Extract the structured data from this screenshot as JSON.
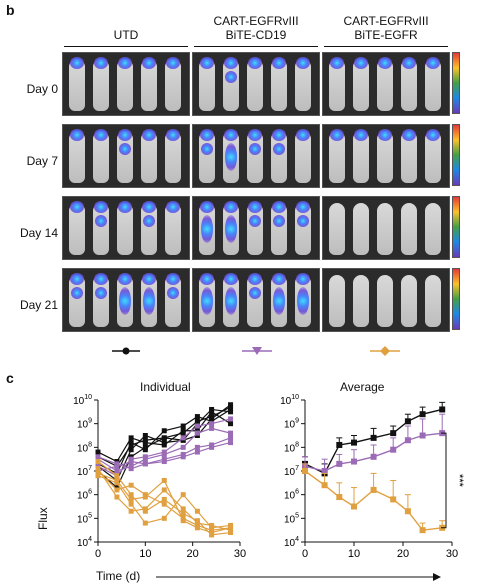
{
  "panel_b": {
    "letter": "b",
    "groups": [
      {
        "label_line1": "UTD",
        "label_line2": ""
      },
      {
        "label_line1": "CART-EGFRvIII",
        "label_line2": "BiTE-CD19"
      },
      {
        "label_line1": "CART-EGFRvIII",
        "label_line2": "BiTE-EGFR"
      }
    ],
    "rows": [
      "Day 0",
      "Day 7",
      "Day 14",
      "Day 21"
    ],
    "colors": {
      "utd": "#111111",
      "cd19": "#9b6bb5",
      "egfr": "#e0a040"
    }
  },
  "panel_c": {
    "letter": "c",
    "ylabel": "Flux",
    "xlabel": "Time (d)",
    "chart_data": [
      {
        "type": "line",
        "title": "Individual",
        "ylim": [
          4,
          10
        ],
        "log_y": true,
        "xlim": [
          0,
          30
        ],
        "x_ticks": [
          0,
          10,
          20,
          30
        ],
        "series": [
          {
            "color": "#111111",
            "lines": [
              [
                [
                  0,
                  7.6
                ],
                [
                  4,
                  7.2
                ],
                [
                  7,
                  8.1
                ],
                [
                  10,
                  8.3
                ],
                [
                  14,
                  8.4
                ],
                [
                  18,
                  8.6
                ],
                [
                  21,
                  9.1
                ],
                [
                  24,
                  9.3
                ],
                [
                  28,
                  9.7
                ]
              ],
              [
                [
                  0,
                  7.0
                ],
                [
                  4,
                  6.3
                ],
                [
                  7,
                  7.6
                ],
                [
                  10,
                  8.0
                ],
                [
                  14,
                  8.4
                ],
                [
                  18,
                  8.3
                ],
                [
                  21,
                  9.0
                ],
                [
                  24,
                  9.6
                ],
                [
                  28,
                  9.5
                ]
              ],
              [
                [
                  0,
                  7.3
                ],
                [
                  4,
                  6.9
                ],
                [
                  7,
                  8.2
                ],
                [
                  10,
                  7.9
                ],
                [
                  14,
                  8.7
                ],
                [
                  18,
                  8.9
                ],
                [
                  21,
                  9.3
                ],
                [
                  24,
                  9.1
                ],
                [
                  28,
                  9.6
                ]
              ],
              [
                [
                  0,
                  7.8
                ],
                [
                  4,
                  7.4
                ],
                [
                  7,
                  8.4
                ],
                [
                  10,
                  8.2
                ],
                [
                  14,
                  8.1
                ],
                [
                  18,
                  8.7
                ],
                [
                  21,
                  8.7
                ],
                [
                  24,
                  9.5
                ],
                [
                  28,
                  9.0
                ]
              ],
              [
                [
                  0,
                  7.2
                ],
                [
                  4,
                  6.6
                ],
                [
                  7,
                  7.9
                ],
                [
                  10,
                  8.5
                ],
                [
                  14,
                  8.2
                ],
                [
                  18,
                  8.3
                ],
                [
                  21,
                  8.5
                ],
                [
                  24,
                  9.2
                ],
                [
                  28,
                  9.8
                ]
              ]
            ]
          },
          {
            "color": "#9b6bb5",
            "lines": [
              [
                [
                  0,
                  7.2
                ],
                [
                  4,
                  6.8
                ],
                [
                  7,
                  7.5
                ],
                [
                  10,
                  7.6
                ],
                [
                  14,
                  7.8
                ],
                [
                  18,
                  8.4
                ],
                [
                  21,
                  8.9
                ],
                [
                  24,
                  9.0
                ],
                [
                  28,
                  9.2
                ]
              ],
              [
                [
                  0,
                  7.5
                ],
                [
                  4,
                  7.0
                ],
                [
                  7,
                  7.2
                ],
                [
                  10,
                  7.5
                ],
                [
                  14,
                  7.7
                ],
                [
                  18,
                  8.0
                ],
                [
                  21,
                  8.6
                ],
                [
                  24,
                  8.8
                ],
                [
                  28,
                  8.6
                ]
              ],
              [
                [
                  0,
                  7.0
                ],
                [
                  4,
                  7.2
                ],
                [
                  7,
                  7.4
                ],
                [
                  10,
                  7.3
                ],
                [
                  14,
                  7.5
                ],
                [
                  18,
                  7.7
                ],
                [
                  21,
                  8.0
                ],
                [
                  24,
                  8.1
                ],
                [
                  28,
                  8.4
                ]
              ],
              [
                [
                  0,
                  7.6
                ],
                [
                  4,
                  7.3
                ],
                [
                  7,
                  7.1
                ],
                [
                  10,
                  7.3
                ],
                [
                  14,
                  7.4
                ],
                [
                  18,
                  7.6
                ],
                [
                  21,
                  7.8
                ],
                [
                  24,
                  8.0
                ],
                [
                  28,
                  8.2
                ]
              ]
            ]
          },
          {
            "color": "#e0a040",
            "lines": [
              [
                [
                  0,
                  7.0
                ],
                [
                  4,
                  6.2
                ],
                [
                  7,
                  6.4
                ],
                [
                  10,
                  6.0
                ],
                [
                  14,
                  5.6
                ],
                [
                  18,
                  5.0
                ],
                [
                  21,
                  4.7
                ],
                [
                  24,
                  4.5
                ],
                [
                  28,
                  4.6
                ]
              ],
              [
                [
                  0,
                  7.4
                ],
                [
                  4,
                  6.8
                ],
                [
                  7,
                  6.0
                ],
                [
                  10,
                  5.3
                ],
                [
                  14,
                  5.8
                ],
                [
                  18,
                  5.2
                ],
                [
                  21,
                  4.9
                ],
                [
                  24,
                  4.3
                ],
                [
                  28,
                  4.4
                ]
              ],
              [
                [
                  0,
                  6.8
                ],
                [
                  4,
                  6.5
                ],
                [
                  7,
                  5.6
                ],
                [
                  10,
                  4.8
                ],
                [
                  14,
                  5.0
                ],
                [
                  18,
                  6.0
                ],
                [
                  21,
                  5.3
                ],
                [
                  24,
                  4.6
                ],
                [
                  28,
                  4.7
                ]
              ],
              [
                [
                  0,
                  7.1
                ],
                [
                  4,
                  5.9
                ],
                [
                  7,
                  5.3
                ],
                [
                  10,
                  5.4
                ],
                [
                  14,
                  6.2
                ],
                [
                  18,
                  5.4
                ],
                [
                  21,
                  4.8
                ],
                [
                  24,
                  4.7
                ],
                [
                  28,
                  4.5
                ]
              ],
              [
                [
                  0,
                  6.9
                ],
                [
                  4,
                  6.6
                ],
                [
                  7,
                  5.8
                ],
                [
                  10,
                  5.9
                ],
                [
                  14,
                  6.6
                ],
                [
                  18,
                  4.9
                ],
                [
                  21,
                  4.6
                ],
                [
                  24,
                  4.4
                ],
                [
                  28,
                  4.6
                ]
              ]
            ]
          }
        ]
      },
      {
        "type": "line",
        "title": "Average",
        "ylim": [
          4,
          10
        ],
        "log_y": true,
        "xlim": [
          0,
          30
        ],
        "x_ticks": [
          0,
          10,
          20,
          30
        ],
        "significance": "***",
        "series": [
          {
            "color": "#111111",
            "points": [
              [
                0,
                7.3
              ],
              [
                4,
                6.9
              ],
              [
                7,
                8.1
              ],
              [
                10,
                8.2
              ],
              [
                14,
                8.4
              ],
              [
                18,
                8.6
              ],
              [
                21,
                9.1
              ],
              [
                24,
                9.4
              ],
              [
                28,
                9.6
              ]
            ],
            "err": [
              0.3,
              0.4,
              0.3,
              0.3,
              0.4,
              0.3,
              0.3,
              0.3,
              0.3
            ]
          },
          {
            "color": "#9b6bb5",
            "points": [
              [
                0,
                7.2
              ],
              [
                4,
                7.0
              ],
              [
                7,
                7.3
              ],
              [
                10,
                7.4
              ],
              [
                14,
                7.6
              ],
              [
                18,
                7.9
              ],
              [
                21,
                8.3
              ],
              [
                24,
                8.5
              ],
              [
                28,
                8.6
              ]
            ],
            "err": [
              0.4,
              0.5,
              0.4,
              0.5,
              0.5,
              0.5,
              0.6,
              0.7,
              0.8
            ]
          },
          {
            "color": "#e0a040",
            "points": [
              [
                0,
                7.0
              ],
              [
                4,
                6.4
              ],
              [
                7,
                5.9
              ],
              [
                10,
                5.5
              ],
              [
                14,
                6.2
              ],
              [
                18,
                5.8
              ],
              [
                21,
                5.3
              ],
              [
                24,
                4.5
              ],
              [
                28,
                4.6
              ]
            ],
            "err": [
              0.3,
              0.5,
              0.6,
              0.8,
              0.7,
              0.8,
              0.7,
              0.3,
              0.3
            ]
          }
        ]
      }
    ]
  }
}
